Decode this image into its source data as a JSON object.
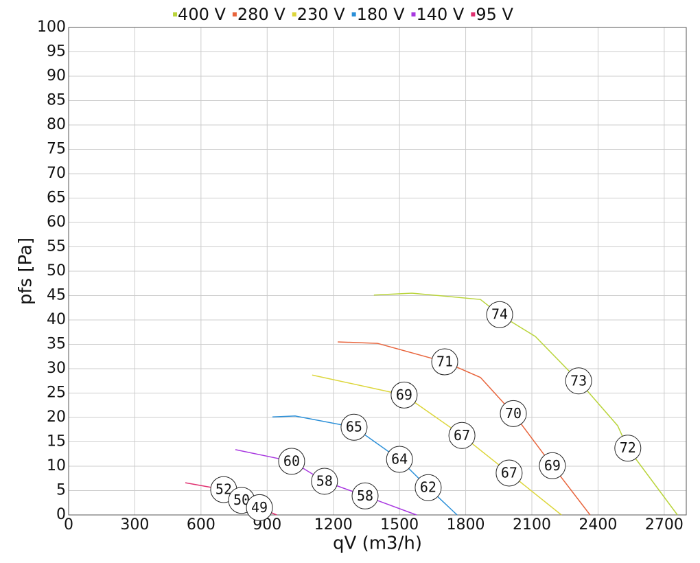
{
  "chart_data": {
    "type": "line",
    "x_label": "qV (m3/h)",
    "y_label": "pfs [Pa]",
    "xlim": [
      0,
      2800
    ],
    "ylim": [
      0,
      100
    ],
    "xticks": [
      0,
      300,
      600,
      900,
      1200,
      1500,
      1800,
      2100,
      2400,
      2700
    ],
    "yticks": [
      0,
      5,
      10,
      15,
      20,
      25,
      30,
      35,
      40,
      45,
      50,
      55,
      60,
      65,
      70,
      75,
      80,
      85,
      90,
      95,
      100
    ],
    "grid": true,
    "legend": "top",
    "series": [
      {
        "name": "400 V",
        "color": "#b9d43a",
        "x": [
          1384,
          1556,
          1867,
          1954,
          2116,
          2312,
          2489,
          2535,
          2760
        ],
        "values": [
          45.1,
          45.5,
          44.2,
          41.1,
          36.6,
          27.5,
          18.3,
          13.7,
          0
        ]
      },
      {
        "name": "280 V",
        "color": "#e8643c",
        "x": [
          1220,
          1400,
          1705,
          1867,
          2016,
          2193,
          2364
        ],
        "values": [
          35.5,
          35.2,
          31.4,
          28.2,
          20.8,
          10.1,
          0
        ]
      },
      {
        "name": "230 V",
        "color": "#dcd63a",
        "x": [
          1104,
          1521,
          1783,
          1997,
          2234
        ],
        "values": [
          28.7,
          24.6,
          16.3,
          8.6,
          0
        ]
      },
      {
        "name": "180 V",
        "color": "#2a8fd8",
        "x": [
          924,
          1027,
          1294,
          1500,
          1630,
          1761
        ],
        "values": [
          20.1,
          20.3,
          18.0,
          11.4,
          5.6,
          0
        ]
      },
      {
        "name": "140 V",
        "color": "#a838e0",
        "x": [
          756,
          1011,
          1160,
          1344,
          1577
        ],
        "values": [
          13.4,
          11.0,
          6.9,
          3.9,
          0
        ]
      },
      {
        "name": "95 V",
        "color": "#e03070",
        "x": [
          529,
          703,
          784,
          865,
          943
        ],
        "values": [
          6.6,
          5.2,
          3.0,
          1.5,
          0
        ]
      }
    ],
    "annotations": [
      {
        "text": "74",
        "x": 1954,
        "y": 41.1
      },
      {
        "text": "73",
        "x": 2312,
        "y": 27.5
      },
      {
        "text": "72",
        "x": 2535,
        "y": 13.7
      },
      {
        "text": "71",
        "x": 1705,
        "y": 31.4
      },
      {
        "text": "70",
        "x": 2016,
        "y": 20.8
      },
      {
        "text": "69",
        "x": 2193,
        "y": 10.1
      },
      {
        "text": "69",
        "x": 1521,
        "y": 24.6
      },
      {
        "text": "67",
        "x": 1783,
        "y": 16.3
      },
      {
        "text": "67",
        "x": 1997,
        "y": 8.6
      },
      {
        "text": "65",
        "x": 1294,
        "y": 18.0
      },
      {
        "text": "64",
        "x": 1500,
        "y": 11.4
      },
      {
        "text": "62",
        "x": 1630,
        "y": 5.6
      },
      {
        "text": "60",
        "x": 1011,
        "y": 11.0
      },
      {
        "text": "58",
        "x": 1160,
        "y": 6.9
      },
      {
        "text": "58",
        "x": 1344,
        "y": 3.9
      },
      {
        "text": "52",
        "x": 703,
        "y": 5.2
      },
      {
        "text": "50",
        "x": 784,
        "y": 3.0
      },
      {
        "text": "49",
        "x": 865,
        "y": 1.5
      }
    ]
  }
}
